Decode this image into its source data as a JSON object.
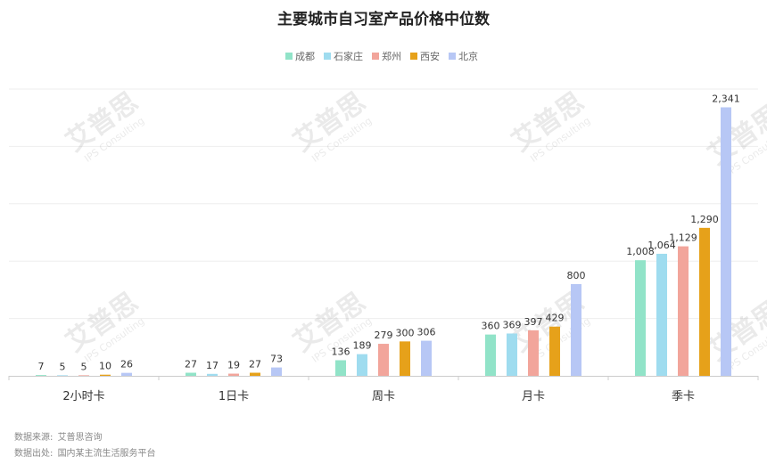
{
  "chart_data": {
    "type": "bar",
    "title": "主要城市自习室产品价格中位数",
    "categories": [
      "2小时卡",
      "1日卡",
      "周卡",
      "月卡",
      "季卡"
    ],
    "series": [
      {
        "name": "成都",
        "color": "#91e3c8",
        "values": [
          7,
          27,
          136,
          360,
          1008
        ]
      },
      {
        "name": "石家庄",
        "color": "#9fdcef",
        "values": [
          5,
          17,
          189,
          369,
          1064
        ]
      },
      {
        "name": "郑州",
        "color": "#f2a59b",
        "values": [
          5,
          19,
          279,
          397,
          1129
        ]
      },
      {
        "name": "西安",
        "color": "#e6a11a",
        "values": [
          10,
          27,
          300,
          429,
          1290
        ]
      },
      {
        "name": "北京",
        "color": "#b7c7f5",
        "values": [
          26,
          73,
          306,
          800,
          2341
        ]
      }
    ],
    "ylim": [
      0,
      2500
    ],
    "grid": true,
    "legend_position": "top-center"
  },
  "footer": {
    "source_label": "数据来源:",
    "source_value": "艾普思咨询",
    "origin_label": "数据出处:",
    "origin_value": "国内某主流生活服务平台"
  },
  "watermark": {
    "brand": "艾普思",
    "sub": "IPS Consulting"
  }
}
